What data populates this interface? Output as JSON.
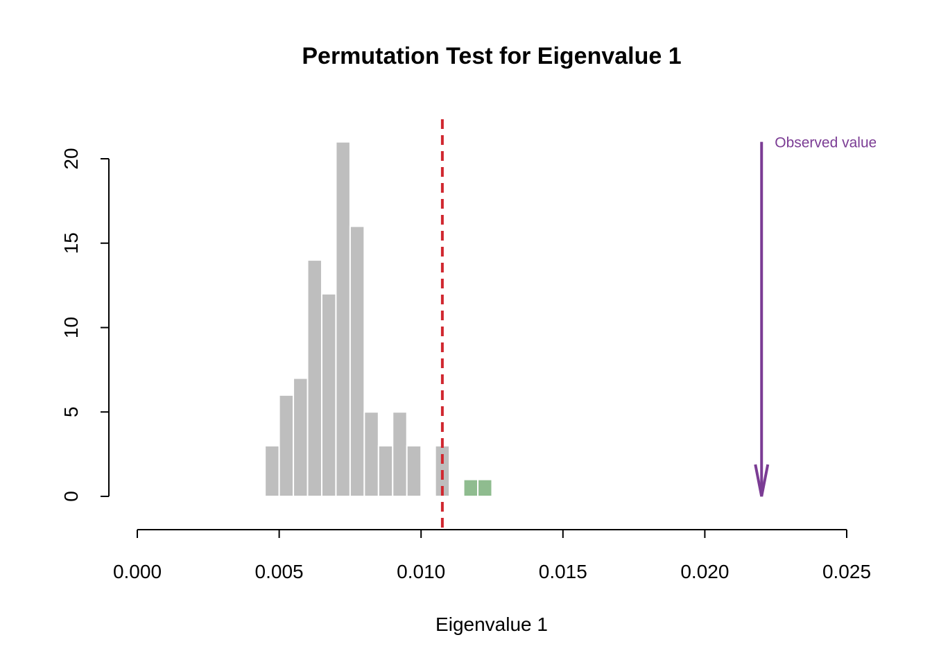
{
  "chart_data": {
    "type": "histogram",
    "title": "Permutation Test for Eigenvalue 1",
    "x_label": "Eigenvalue 1",
    "bins": [
      0.0045,
      0.005,
      0.0055,
      0.006,
      0.0065,
      0.007,
      0.0075,
      0.008,
      0.0085,
      0.009,
      0.0095,
      0.01,
      0.0105,
      0.011,
      0.0115,
      0.012,
      0.0125
    ],
    "values": [
      3,
      6,
      7,
      14,
      12,
      21,
      16,
      5,
      3,
      5,
      3,
      0,
      3,
      0,
      1,
      1
    ],
    "color": "#bebebe",
    "highlight_color": "#8fbc8f",
    "threshold": 0.01075,
    "threshold_color": "#d0272f",
    "observed": {
      "value": 0.022,
      "label": "Observed value",
      "color": "#7b3c94"
    },
    "xlim": [
      0,
      0.025
    ],
    "xticks": [
      {
        "value": 0,
        "label": "0.000"
      },
      {
        "value": 0.005,
        "label": "0.005"
      },
      {
        "value": 0.01,
        "label": "0.010"
      },
      {
        "value": 0.015,
        "label": "0.015"
      },
      {
        "value": 0.02,
        "label": "0.020"
      },
      {
        "value": 0.025,
        "label": "0.025"
      }
    ],
    "ylim": [
      0,
      21
    ],
    "yticks": [
      0,
      5,
      10,
      15,
      20
    ]
  }
}
